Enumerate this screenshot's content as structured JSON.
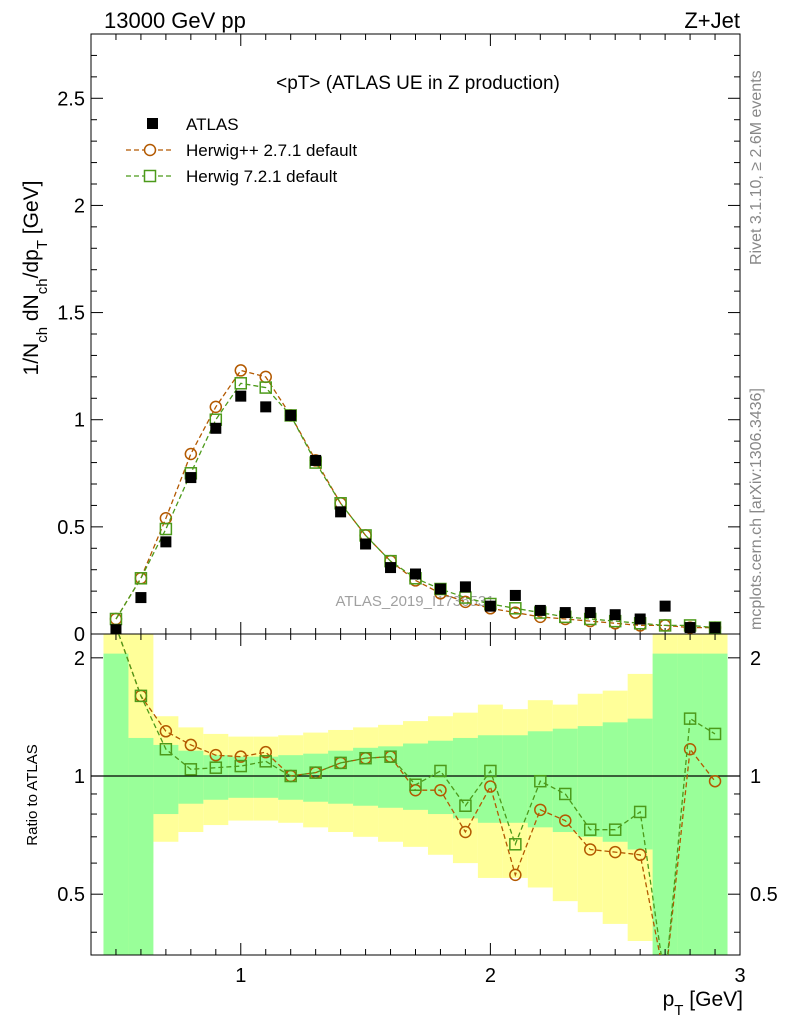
{
  "header": {
    "left": "13000 GeV pp",
    "right": "Z+Jet"
  },
  "side": {
    "rivet": "Rivet 3.1.10, ≥ 2.6M events",
    "mcplots": "mcplots.cern.ch [arXiv:1306.3436]"
  },
  "chart_data": {
    "type": "scatter",
    "title": "<pT> (ATLAS UE in Z production)",
    "watermark": "ATLAS_2019_I1736531",
    "x": [
      0.5,
      0.6,
      0.7,
      0.8,
      0.9,
      1.0,
      1.1,
      1.2,
      1.3,
      1.4,
      1.5,
      1.6,
      1.7,
      1.8,
      1.9,
      2.0,
      2.1,
      2.2,
      2.3,
      2.4,
      2.5,
      2.6,
      2.7,
      2.8,
      2.9
    ],
    "xlim": [
      0.4,
      3.0
    ],
    "xticks": [
      "1",
      "2",
      "3"
    ],
    "xlabel": "p_T [GeV]",
    "main": {
      "ylabel": "1/N_ch dN_ch/dp_T [GeV]",
      "ylim": [
        0,
        2.8
      ],
      "yticks": [
        "0",
        "0.5",
        "1",
        "1.5",
        "2",
        "2.5"
      ],
      "series": [
        {
          "name": "ATLAS",
          "color": "#000000",
          "marker": "square-filled",
          "values": [
            0.02,
            0.17,
            0.43,
            0.73,
            0.96,
            1.11,
            1.06,
            1.02,
            0.81,
            0.57,
            0.42,
            0.31,
            0.28,
            0.21,
            0.22,
            0.13,
            0.18,
            0.11,
            0.1,
            0.1,
            0.09,
            0.07,
            0.13,
            0.03,
            0.03
          ]
        },
        {
          "name": "Herwig++ 2.7.1 default",
          "color": "#b35900",
          "marker": "circle-open",
          "values": [
            0.07,
            0.26,
            0.54,
            0.84,
            1.06,
            1.23,
            1.2,
            1.02,
            0.81,
            0.61,
            0.46,
            0.34,
            0.25,
            0.19,
            0.15,
            0.12,
            0.1,
            0.08,
            0.07,
            0.06,
            0.05,
            0.04,
            0.04,
            0.03,
            0.03
          ]
        },
        {
          "name": "Herwig 7.2.1 default",
          "color": "#4c9a1a",
          "marker": "square-open",
          "values": [
            0.07,
            0.26,
            0.49,
            0.75,
            1.0,
            1.17,
            1.15,
            1.02,
            0.8,
            0.61,
            0.46,
            0.34,
            0.26,
            0.21,
            0.17,
            0.14,
            0.12,
            0.1,
            0.08,
            0.07,
            0.06,
            0.05,
            0.04,
            0.04,
            0.03
          ]
        }
      ]
    },
    "ratio": {
      "ylabel": "Ratio to ATLAS",
      "ylim": [
        0.35,
        2.3
      ],
      "yticks": [
        "0.5",
        "1",
        "2"
      ],
      "reference": 1,
      "band_edges": [
        0.45,
        0.55,
        0.65,
        0.75,
        0.85,
        0.95,
        1.05,
        1.15,
        1.25,
        1.35,
        1.45,
        1.55,
        1.65,
        1.75,
        1.85,
        1.95,
        2.05,
        2.15,
        2.25,
        2.35,
        2.45,
        2.55,
        2.65,
        2.75,
        2.85,
        2.95
      ],
      "band_1sigma": [
        [
          0.35,
          2.05
        ],
        [
          0.35,
          1.25
        ],
        [
          0.8,
          1.2
        ],
        [
          0.85,
          1.16
        ],
        [
          0.87,
          1.13
        ],
        [
          0.88,
          1.12
        ],
        [
          0.88,
          1.12
        ],
        [
          0.87,
          1.13
        ],
        [
          0.86,
          1.14
        ],
        [
          0.85,
          1.16
        ],
        [
          0.84,
          1.18
        ],
        [
          0.83,
          1.19
        ],
        [
          0.82,
          1.21
        ],
        [
          0.8,
          1.23
        ],
        [
          0.78,
          1.25
        ],
        [
          0.76,
          1.27
        ],
        [
          0.76,
          1.27
        ],
        [
          0.74,
          1.3
        ],
        [
          0.72,
          1.32
        ],
        [
          0.7,
          1.34
        ],
        [
          0.68,
          1.37
        ],
        [
          0.65,
          1.4
        ],
        [
          0.35,
          2.05
        ],
        [
          0.35,
          2.05
        ],
        [
          0.35,
          2.05
        ]
      ],
      "band_2sigma": [
        [
          0.35,
          2.35
        ],
        [
          0.6,
          2.35
        ],
        [
          0.68,
          1.42
        ],
        [
          0.72,
          1.33
        ],
        [
          0.75,
          1.28
        ],
        [
          0.77,
          1.26
        ],
        [
          0.77,
          1.26
        ],
        [
          0.76,
          1.27
        ],
        [
          0.74,
          1.29
        ],
        [
          0.72,
          1.31
        ],
        [
          0.7,
          1.33
        ],
        [
          0.68,
          1.35
        ],
        [
          0.66,
          1.38
        ],
        [
          0.63,
          1.42
        ],
        [
          0.6,
          1.45
        ],
        [
          0.55,
          1.52
        ],
        [
          0.55,
          1.48
        ],
        [
          0.52,
          1.56
        ],
        [
          0.48,
          1.52
        ],
        [
          0.45,
          1.62
        ],
        [
          0.42,
          1.65
        ],
        [
          0.38,
          1.82
        ],
        [
          0.35,
          2.35
        ],
        [
          0.35,
          2.35
        ],
        [
          0.35,
          2.35
        ]
      ],
      "series": [
        {
          "name": "Herwig++ 2.7.1 default",
          "color": "#b35900",
          "marker": "circle-open",
          "values": [
            2.4,
            1.6,
            1.3,
            1.2,
            1.13,
            1.12,
            1.15,
            1.0,
            1.02,
            1.08,
            1.11,
            1.12,
            0.92,
            0.92,
            0.72,
            0.94,
            0.56,
            0.82,
            0.77,
            0.65,
            0.64,
            0.63,
            0.3,
            1.17,
            0.97
          ]
        },
        {
          "name": "Herwig 7.2.1 default",
          "color": "#4c9a1a",
          "marker": "square-open",
          "values": [
            2.4,
            1.6,
            1.17,
            1.04,
            1.05,
            1.06,
            1.09,
            1.0,
            1.02,
            1.08,
            1.11,
            1.12,
            0.95,
            1.03,
            0.84,
            1.03,
            0.67,
            0.97,
            0.9,
            0.73,
            0.73,
            0.81,
            0.3,
            1.4,
            1.28
          ]
        }
      ]
    }
  }
}
